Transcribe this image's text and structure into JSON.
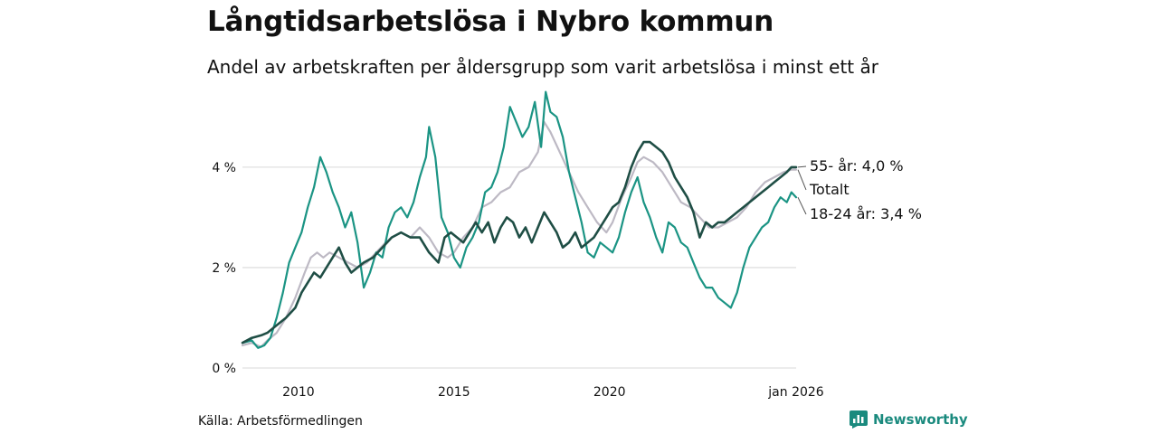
{
  "title": "Långtidsarbetslösa i Nybro kommun",
  "subtitle": "Andel av arbetskraften per åldersgrupp som varit arbetslösa i minst ett år",
  "source": "Källa: Arbetsförmedlingen",
  "brand": "Newsworthy",
  "colors": {
    "s55": "#1f4e45",
    "total": "#bdb9c4",
    "s1824": "#1b9484",
    "grid": "#e0e0e0",
    "brand": "#1a8a7e"
  },
  "chart_data": {
    "type": "line",
    "title": "Långtidsarbetslösa i Nybro kommun",
    "subtitle": "Andel av arbetskraften per åldersgrupp som varit arbetslösa i minst ett år",
    "xlabel": "",
    "ylabel": "",
    "x_range": [
      2008.2,
      2026.0
    ],
    "ylim": [
      0,
      5.6
    ],
    "y_ticks": [
      0,
      2,
      4
    ],
    "y_tick_labels": [
      "0 %",
      "2 %",
      "4 %"
    ],
    "x_ticks": [
      2010,
      2015,
      2020,
      2026.0
    ],
    "x_tick_labels": [
      "2010",
      "2015",
      "2020",
      "jan 2026"
    ],
    "grid": true,
    "series": [
      {
        "name": "Totalt",
        "label": "Totalt",
        "color": "#bdb9c4",
        "points": [
          [
            2008.2,
            0.45
          ],
          [
            2008.5,
            0.5
          ],
          [
            2008.8,
            0.42
          ],
          [
            2009.0,
            0.55
          ],
          [
            2009.3,
            0.7
          ],
          [
            2009.6,
            1.0
          ],
          [
            2009.9,
            1.4
          ],
          [
            2010.2,
            1.9
          ],
          [
            2010.4,
            2.2
          ],
          [
            2010.6,
            2.3
          ],
          [
            2010.8,
            2.2
          ],
          [
            2011.0,
            2.3
          ],
          [
            2011.3,
            2.2
          ],
          [
            2011.6,
            2.1
          ],
          [
            2011.9,
            2.0
          ],
          [
            2012.2,
            2.1
          ],
          [
            2012.5,
            2.3
          ],
          [
            2012.8,
            2.5
          ],
          [
            2013.0,
            2.6
          ],
          [
            2013.3,
            2.7
          ],
          [
            2013.6,
            2.6
          ],
          [
            2013.9,
            2.8
          ],
          [
            2014.2,
            2.6
          ],
          [
            2014.5,
            2.3
          ],
          [
            2014.8,
            2.2
          ],
          [
            2015.0,
            2.3
          ],
          [
            2015.3,
            2.6
          ],
          [
            2015.6,
            2.8
          ],
          [
            2015.9,
            3.2
          ],
          [
            2016.2,
            3.3
          ],
          [
            2016.5,
            3.5
          ],
          [
            2016.8,
            3.6
          ],
          [
            2017.1,
            3.9
          ],
          [
            2017.4,
            4.0
          ],
          [
            2017.7,
            4.3
          ],
          [
            2017.9,
            4.9
          ],
          [
            2018.1,
            4.7
          ],
          [
            2018.4,
            4.3
          ],
          [
            2018.7,
            3.9
          ],
          [
            2019.0,
            3.5
          ],
          [
            2019.3,
            3.2
          ],
          [
            2019.6,
            2.9
          ],
          [
            2019.9,
            2.7
          ],
          [
            2020.1,
            2.9
          ],
          [
            2020.4,
            3.4
          ],
          [
            2020.7,
            3.8
          ],
          [
            2020.9,
            4.1
          ],
          [
            2021.1,
            4.2
          ],
          [
            2021.4,
            4.1
          ],
          [
            2021.7,
            3.9
          ],
          [
            2022.0,
            3.6
          ],
          [
            2022.3,
            3.3
          ],
          [
            2022.6,
            3.2
          ],
          [
            2022.9,
            3.0
          ],
          [
            2023.2,
            2.8
          ],
          [
            2023.5,
            2.8
          ],
          [
            2023.8,
            2.9
          ],
          [
            2024.1,
            3.0
          ],
          [
            2024.4,
            3.2
          ],
          [
            2024.7,
            3.5
          ],
          [
            2025.0,
            3.7
          ],
          [
            2025.3,
            3.8
          ],
          [
            2025.6,
            3.9
          ],
          [
            2025.85,
            3.95
          ],
          [
            2026.0,
            3.95
          ]
        ]
      },
      {
        "name": "55- år",
        "label": "55- år: 4,0 %",
        "color": "#1f4e45",
        "points": [
          [
            2008.2,
            0.5
          ],
          [
            2008.5,
            0.6
          ],
          [
            2008.8,
            0.65
          ],
          [
            2009.0,
            0.7
          ],
          [
            2009.3,
            0.85
          ],
          [
            2009.6,
            1.0
          ],
          [
            2009.9,
            1.2
          ],
          [
            2010.1,
            1.5
          ],
          [
            2010.3,
            1.7
          ],
          [
            2010.5,
            1.9
          ],
          [
            2010.7,
            1.8
          ],
          [
            2010.9,
            2.0
          ],
          [
            2011.1,
            2.2
          ],
          [
            2011.3,
            2.4
          ],
          [
            2011.5,
            2.1
          ],
          [
            2011.7,
            1.9
          ],
          [
            2011.9,
            2.0
          ],
          [
            2012.1,
            2.1
          ],
          [
            2012.4,
            2.2
          ],
          [
            2012.7,
            2.4
          ],
          [
            2013.0,
            2.6
          ],
          [
            2013.3,
            2.7
          ],
          [
            2013.6,
            2.6
          ],
          [
            2013.9,
            2.6
          ],
          [
            2014.2,
            2.3
          ],
          [
            2014.5,
            2.1
          ],
          [
            2014.7,
            2.6
          ],
          [
            2014.9,
            2.7
          ],
          [
            2015.1,
            2.6
          ],
          [
            2015.3,
            2.5
          ],
          [
            2015.5,
            2.7
          ],
          [
            2015.7,
            2.9
          ],
          [
            2015.9,
            2.7
          ],
          [
            2016.1,
            2.9
          ],
          [
            2016.3,
            2.5
          ],
          [
            2016.5,
            2.8
          ],
          [
            2016.7,
            3.0
          ],
          [
            2016.9,
            2.9
          ],
          [
            2017.1,
            2.6
          ],
          [
            2017.3,
            2.8
          ],
          [
            2017.5,
            2.5
          ],
          [
            2017.7,
            2.8
          ],
          [
            2017.9,
            3.1
          ],
          [
            2018.1,
            2.9
          ],
          [
            2018.3,
            2.7
          ],
          [
            2018.5,
            2.4
          ],
          [
            2018.7,
            2.5
          ],
          [
            2018.9,
            2.7
          ],
          [
            2019.1,
            2.4
          ],
          [
            2019.3,
            2.5
          ],
          [
            2019.5,
            2.6
          ],
          [
            2019.7,
            2.8
          ],
          [
            2019.9,
            3.0
          ],
          [
            2020.1,
            3.2
          ],
          [
            2020.3,
            3.3
          ],
          [
            2020.5,
            3.6
          ],
          [
            2020.7,
            4.0
          ],
          [
            2020.9,
            4.3
          ],
          [
            2021.1,
            4.5
          ],
          [
            2021.3,
            4.5
          ],
          [
            2021.5,
            4.4
          ],
          [
            2021.7,
            4.3
          ],
          [
            2021.9,
            4.1
          ],
          [
            2022.1,
            3.8
          ],
          [
            2022.3,
            3.6
          ],
          [
            2022.5,
            3.4
          ],
          [
            2022.7,
            3.1
          ],
          [
            2022.9,
            2.6
          ],
          [
            2023.1,
            2.9
          ],
          [
            2023.3,
            2.8
          ],
          [
            2023.5,
            2.9
          ],
          [
            2023.7,
            2.9
          ],
          [
            2023.9,
            3.0
          ],
          [
            2024.1,
            3.1
          ],
          [
            2024.3,
            3.2
          ],
          [
            2024.5,
            3.3
          ],
          [
            2024.7,
            3.4
          ],
          [
            2024.9,
            3.5
          ],
          [
            2025.1,
            3.6
          ],
          [
            2025.3,
            3.7
          ],
          [
            2025.5,
            3.8
          ],
          [
            2025.7,
            3.9
          ],
          [
            2025.85,
            4.0
          ],
          [
            2026.0,
            4.0
          ]
        ]
      },
      {
        "name": "18-24 år",
        "label": "18-24 år: 3,4 %",
        "color": "#1b9484",
        "points": [
          [
            2008.2,
            0.5
          ],
          [
            2008.5,
            0.55
          ],
          [
            2008.7,
            0.4
          ],
          [
            2008.9,
            0.45
          ],
          [
            2009.1,
            0.6
          ],
          [
            2009.3,
            1.0
          ],
          [
            2009.5,
            1.5
          ],
          [
            2009.7,
            2.1
          ],
          [
            2009.9,
            2.4
          ],
          [
            2010.1,
            2.7
          ],
          [
            2010.3,
            3.2
          ],
          [
            2010.5,
            3.6
          ],
          [
            2010.7,
            4.2
          ],
          [
            2010.9,
            3.9
          ],
          [
            2011.1,
            3.5
          ],
          [
            2011.3,
            3.2
          ],
          [
            2011.5,
            2.8
          ],
          [
            2011.7,
            3.1
          ],
          [
            2011.9,
            2.5
          ],
          [
            2012.1,
            1.6
          ],
          [
            2012.3,
            1.9
          ],
          [
            2012.5,
            2.3
          ],
          [
            2012.7,
            2.2
          ],
          [
            2012.9,
            2.8
          ],
          [
            2013.1,
            3.1
          ],
          [
            2013.3,
            3.2
          ],
          [
            2013.5,
            3.0
          ],
          [
            2013.7,
            3.3
          ],
          [
            2013.9,
            3.8
          ],
          [
            2014.1,
            4.2
          ],
          [
            2014.2,
            4.8
          ],
          [
            2014.4,
            4.2
          ],
          [
            2014.6,
            3.0
          ],
          [
            2014.8,
            2.7
          ],
          [
            2015.0,
            2.2
          ],
          [
            2015.2,
            2.0
          ],
          [
            2015.4,
            2.4
          ],
          [
            2015.6,
            2.6
          ],
          [
            2015.8,
            2.9
          ],
          [
            2016.0,
            3.5
          ],
          [
            2016.2,
            3.6
          ],
          [
            2016.4,
            3.9
          ],
          [
            2016.6,
            4.4
          ],
          [
            2016.8,
            5.2
          ],
          [
            2017.0,
            4.9
          ],
          [
            2017.2,
            4.6
          ],
          [
            2017.4,
            4.8
          ],
          [
            2017.6,
            5.3
          ],
          [
            2017.8,
            4.4
          ],
          [
            2017.95,
            5.5
          ],
          [
            2018.1,
            5.1
          ],
          [
            2018.3,
            5.0
          ],
          [
            2018.5,
            4.6
          ],
          [
            2018.7,
            3.9
          ],
          [
            2018.9,
            3.4
          ],
          [
            2019.1,
            2.9
          ],
          [
            2019.3,
            2.3
          ],
          [
            2019.5,
            2.2
          ],
          [
            2019.7,
            2.5
          ],
          [
            2019.9,
            2.4
          ],
          [
            2020.1,
            2.3
          ],
          [
            2020.3,
            2.6
          ],
          [
            2020.5,
            3.1
          ],
          [
            2020.7,
            3.5
          ],
          [
            2020.9,
            3.8
          ],
          [
            2021.1,
            3.3
          ],
          [
            2021.3,
            3.0
          ],
          [
            2021.5,
            2.6
          ],
          [
            2021.7,
            2.3
          ],
          [
            2021.9,
            2.9
          ],
          [
            2022.1,
            2.8
          ],
          [
            2022.3,
            2.5
          ],
          [
            2022.5,
            2.4
          ],
          [
            2022.7,
            2.1
          ],
          [
            2022.9,
            1.8
          ],
          [
            2023.1,
            1.6
          ],
          [
            2023.3,
            1.6
          ],
          [
            2023.5,
            1.4
          ],
          [
            2023.7,
            1.3
          ],
          [
            2023.9,
            1.2
          ],
          [
            2024.1,
            1.5
          ],
          [
            2024.3,
            2.0
          ],
          [
            2024.5,
            2.4
          ],
          [
            2024.7,
            2.6
          ],
          [
            2024.9,
            2.8
          ],
          [
            2025.1,
            2.9
          ],
          [
            2025.3,
            3.2
          ],
          [
            2025.5,
            3.4
          ],
          [
            2025.7,
            3.3
          ],
          [
            2025.85,
            3.5
          ],
          [
            2026.0,
            3.4
          ]
        ]
      }
    ]
  }
}
